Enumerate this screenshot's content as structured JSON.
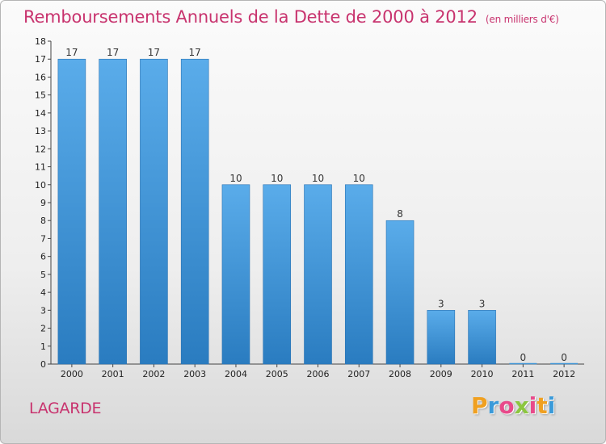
{
  "title": "Remboursements Annuels de la Dette de 2000 à 2012",
  "subtitle": "(en milliers d'€)",
  "commune": "LAGARDE",
  "logo": {
    "letters": [
      "P",
      "r",
      "o",
      "x",
      "i",
      "t",
      "i"
    ],
    "colors": [
      "#f0a020",
      "#3a9ad9",
      "#e84a8a",
      "#8cc63f",
      "#e84a8a",
      "#f0a020",
      "#3a9ad9"
    ]
  },
  "chart_data": {
    "type": "bar",
    "categories": [
      "2000",
      "2001",
      "2002",
      "2003",
      "2004",
      "2005",
      "2006",
      "2007",
      "2008",
      "2009",
      "2010",
      "2011",
      "2012"
    ],
    "values": [
      17,
      17,
      17,
      17,
      10,
      10,
      10,
      10,
      8,
      3,
      3,
      0,
      0
    ],
    "data_labels": [
      "17",
      "17",
      "17",
      "17",
      "10",
      "10",
      "10",
      "10",
      "8",
      "3",
      "3",
      "0",
      "0"
    ],
    "yticks": [
      "0",
      "1",
      "2",
      "3",
      "4",
      "5",
      "6",
      "7",
      "8",
      "9",
      "10",
      "11",
      "12",
      "13",
      "14",
      "15",
      "16",
      "17",
      "18"
    ],
    "ylim": [
      0,
      18
    ],
    "bar_color": "#3d93d6",
    "grid": false
  }
}
